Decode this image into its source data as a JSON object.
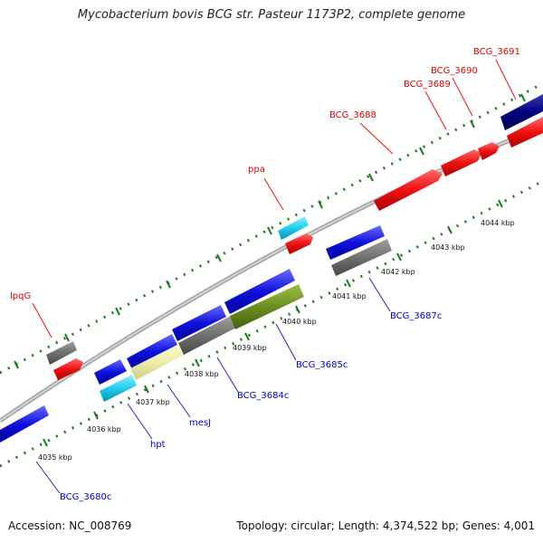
{
  "title": "Mycobacterium bovis BCG str. Pasteur 1173P2, complete genome",
  "footer": {
    "accession": "Accession: NC_008769",
    "summary": "Topology: circular; Length: 4,374,522 bp; Genes: 4,001"
  },
  "ruler_ticks": [
    {
      "label": "4035 kbp"
    },
    {
      "label": "4036 kbp"
    },
    {
      "label": "4037 kbp"
    },
    {
      "label": "4038 kbp"
    },
    {
      "label": "4039 kbp"
    },
    {
      "label": "4040 kbp"
    },
    {
      "label": "4041 kbp"
    },
    {
      "label": "4042 kbp"
    },
    {
      "label": "4043 kbp"
    },
    {
      "label": "4044 kbp"
    }
  ],
  "gene_labels_forward": [
    {
      "label": "lpqG",
      "color": "#dd0000"
    },
    {
      "label": "ppa",
      "color": "#dd0000"
    },
    {
      "label": "BCG_3688",
      "color": "#dd0000"
    },
    {
      "label": "BCG_3689",
      "color": "#dd0000"
    },
    {
      "label": "BCG_3690",
      "color": "#dd0000"
    },
    {
      "label": "BCG_3691",
      "color": "#dd0000"
    }
  ],
  "gene_labels_reverse": [
    {
      "label": "BCG_3680c",
      "color": "#0000cc"
    },
    {
      "label": "hpt",
      "color": "#0000cc"
    },
    {
      "label": "mesJ",
      "color": "#0000cc"
    },
    {
      "label": "BCG_3684c",
      "color": "#0000cc"
    },
    {
      "label": "BCG_3685c",
      "color": "#0000cc"
    },
    {
      "label": "BCG_3687c",
      "color": "#0000cc"
    }
  ],
  "colors": {
    "forward_gene": "#ee1111",
    "reverse_gene": "#1111dd",
    "gray_feature": "#707070",
    "cyan_feature": "#22ccee",
    "pale_yellow_feature": "#eeeeaa",
    "olive_feature": "#6b8e23",
    "navy_feature": "#000080",
    "backbone": "#a8a8a8",
    "tick_green": "#1f7a1f"
  }
}
